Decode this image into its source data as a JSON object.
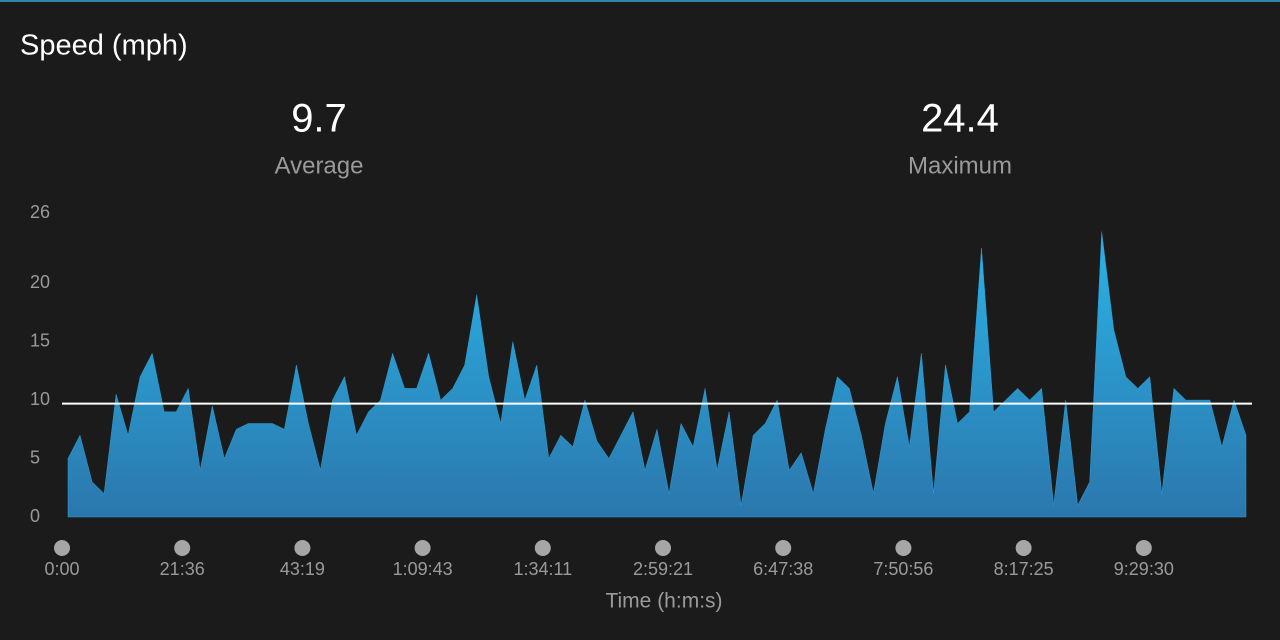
{
  "chart_data": {
    "type": "area",
    "title": "Speed (mph)",
    "average": {
      "value": 9.7,
      "label": "Average"
    },
    "maximum": {
      "value": 24.4,
      "label": "Maximum"
    },
    "x_label": "Time (h:m:s)",
    "x": [
      0.5,
      1.5,
      2.5,
      3.5,
      4.5,
      5.5,
      6.5,
      7.5,
      8.5,
      9.5,
      10.5,
      11.5,
      12.5,
      13.5,
      14.5,
      15.5,
      16.5,
      17.5,
      18.5,
      19.5,
      20.5,
      21.5,
      22.5,
      23.5,
      24.5,
      25.5,
      26.5,
      27.5,
      28.5,
      29.5,
      30.5,
      31.5,
      32.5,
      33.5,
      34.5,
      35.5,
      36.5,
      37.5,
      38.5,
      39.5,
      40.5,
      41.5,
      42.5,
      43.5,
      44.5,
      45.5,
      46.5,
      47.5,
      48.5,
      49.5,
      50.5,
      51.5,
      52.5,
      53.5,
      54.5,
      55.5,
      56.5,
      57.5,
      58.5,
      59.5,
      60.5,
      61.5,
      62.5,
      63.5,
      64.5,
      65.5,
      66.5,
      67.5,
      68.5,
      69.5,
      70.5,
      71.5,
      72.5,
      73.5,
      74.5,
      75.5,
      76.5,
      77.5,
      78.5,
      79.5,
      80.5,
      81.5,
      82.5,
      83.5,
      84.5,
      85.5,
      86.5,
      87.5,
      88.5,
      89.5,
      90.5,
      91.5,
      92.5,
      93.5,
      94.5,
      95.5,
      96.5,
      97.5,
      98.5
    ],
    "values": [
      5,
      7,
      3,
      2,
      10.5,
      7,
      12,
      14,
      9,
      9,
      11,
      4,
      9.5,
      5,
      7.5,
      8,
      8,
      8,
      7.5,
      13,
      8,
      4,
      10,
      12,
      7,
      9,
      10,
      14,
      11,
      11,
      14,
      10,
      11,
      13,
      19,
      12,
      8,
      15,
      10,
      13,
      5,
      7,
      6,
      10,
      6.5,
      5,
      7,
      9,
      4,
      7.5,
      2,
      8,
      6,
      11,
      4,
      9,
      1,
      7,
      8,
      10,
      4,
      5.5,
      2,
      7.5,
      12,
      11,
      7,
      2,
      8,
      12,
      6,
      14,
      2,
      13,
      8,
      9,
      23,
      9,
      10,
      11,
      10,
      11,
      1,
      10,
      1,
      3,
      24.4,
      16,
      12,
      11,
      12,
      2,
      11,
      10,
      10,
      10,
      6,
      10,
      7
    ],
    "xlim": [
      0,
      99
    ],
    "xticks": [
      {
        "value": 0,
        "label": "0:00"
      },
      {
        "value": 10,
        "label": "21:36"
      },
      {
        "value": 20,
        "label": "43:19"
      },
      {
        "value": 30,
        "label": "1:09:43"
      },
      {
        "value": 40,
        "label": "1:34:11"
      },
      {
        "value": 50,
        "label": "2:59:21"
      },
      {
        "value": 60,
        "label": "6:47:38"
      },
      {
        "value": 70,
        "label": "7:50:56"
      },
      {
        "value": 80,
        "label": "8:17:25"
      },
      {
        "value": 90,
        "label": "9:29:30"
      }
    ],
    "ylim": [
      0,
      26
    ],
    "yticks": [
      0,
      5,
      10,
      15,
      20,
      26
    ],
    "color": "#2a9fd6"
  }
}
